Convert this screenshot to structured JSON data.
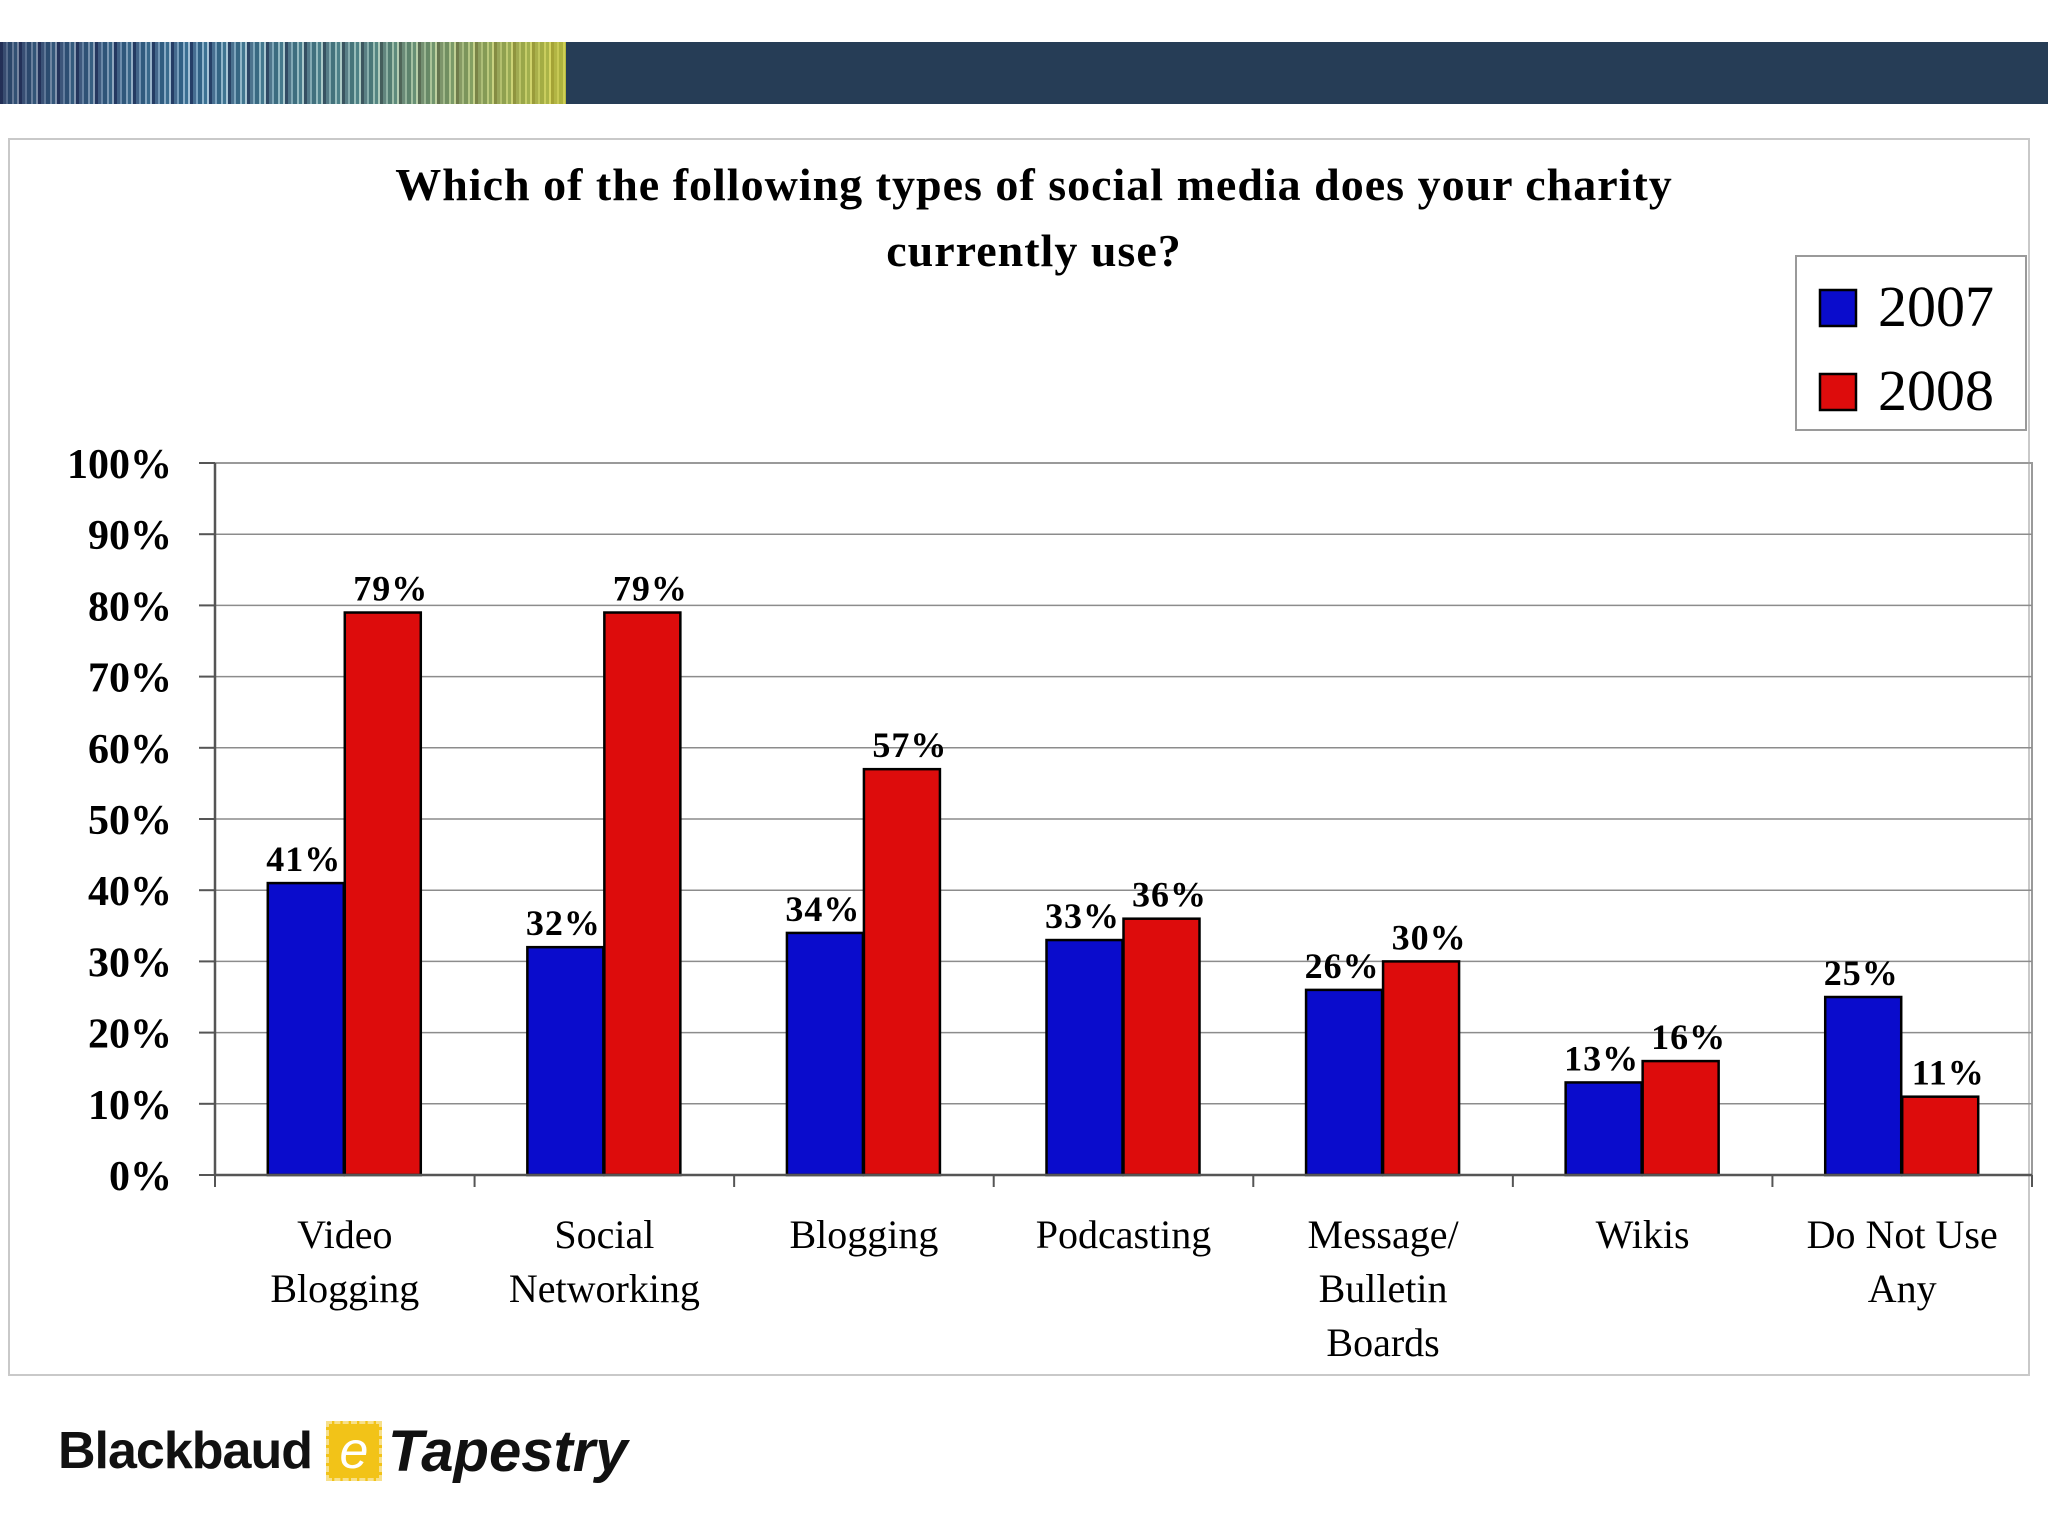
{
  "chart_data": {
    "type": "bar",
    "title_lines": [
      "Which of the following types of social media does your charity",
      "currently use?"
    ],
    "categories": [
      [
        "Video",
        "Blogging"
      ],
      [
        "Social",
        "Networking"
      ],
      [
        "Blogging"
      ],
      [
        "Podcasting"
      ],
      [
        "Message/",
        "Bulletin",
        "Boards"
      ],
      [
        "Wikis"
      ],
      [
        "Do Not Use",
        "Any"
      ]
    ],
    "series": [
      {
        "name": "2007",
        "color": "#0a0ccc",
        "values": [
          41,
          32,
          34,
          33,
          26,
          13,
          25
        ],
        "labels": [
          "41%",
          "32%",
          "34%",
          "33%",
          "26%",
          "13%",
          "25%"
        ]
      },
      {
        "name": "2008",
        "color": "#dd0c0c",
        "values": [
          79,
          79,
          57,
          36,
          30,
          16,
          11
        ],
        "labels": [
          "79%",
          "79%",
          "57%",
          "36%",
          "30%",
          "16%",
          "11%"
        ]
      }
    ],
    "yticks": [
      "0%",
      "10%",
      "20%",
      "30%",
      "40%",
      "50%",
      "60%",
      "70%",
      "80%",
      "90%",
      "100%"
    ],
    "ylim": [
      0,
      100
    ],
    "grid": true,
    "legend_position": "top-right",
    "xlabel": "",
    "ylabel": ""
  },
  "logo": {
    "word1": "Blackbaud",
    "e": "e",
    "word2": "Tapestry"
  }
}
